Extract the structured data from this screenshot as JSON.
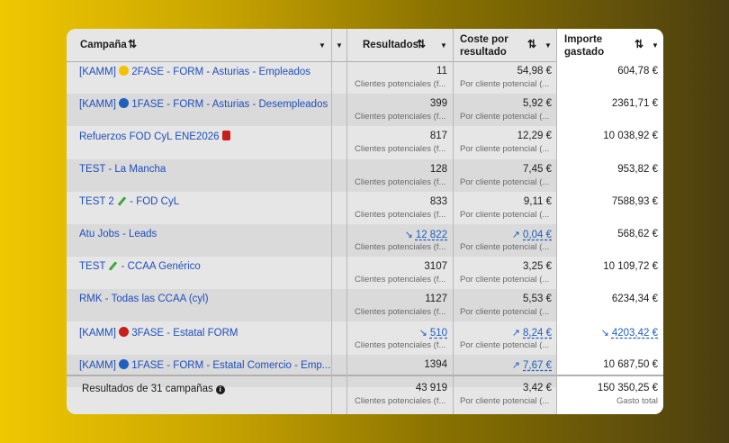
{
  "header": {
    "campaign_label": "Campaña",
    "results_label": "Resultados",
    "cost_label_line1": "Coste por",
    "cost_label_line2": "resultado",
    "spend_label_line1": "Importe",
    "spend_label_line2": "gastado",
    "sort_glyph": "⇅",
    "caret_glyph": "▼"
  },
  "rows": [
    {
      "campaign": "[KAMM] ",
      "emoji_color": "#f2c200",
      "campaign_tail": " 2FASE - FORM - Asturias - Empleados",
      "results": "11",
      "results_sub": "Clientes potenciales (f...",
      "cost": "54,98 €",
      "cost_sub": "Por cliente potencial (...",
      "spend": "604,78 €"
    },
    {
      "campaign": "[KAMM] ",
      "emoji_color": "#1f5fbf",
      "campaign_tail": " 1FASE - FORM - Asturias - Desempleados",
      "results": "399",
      "results_sub": "Clientes potenciales (f...",
      "cost": "5,92 €",
      "cost_sub": "Por cliente potencial (...",
      "spend": "2361,71 €"
    },
    {
      "campaign": "Refuerzos FOD CyL ENE2026 ",
      "emoji_color": "",
      "campaign_tail": "",
      "results": "817",
      "results_sub": "Clientes potenciales (f...",
      "cost": "12,29 €",
      "cost_sub": "Por cliente potencial (...",
      "spend": "10 038,92 €"
    },
    {
      "campaign": "TEST - La Mancha",
      "emoji_color": "",
      "campaign_tail": "",
      "results": "128",
      "results_sub": "Clientes potenciales (f...",
      "cost": "7,45 €",
      "cost_sub": "Por cliente potencial (...",
      "spend": "953,82 €"
    },
    {
      "campaign": "TEST 2 ",
      "emoji_color": "",
      "campaign_tail": " - FOD CyL",
      "results": "833",
      "results_sub": "Clientes potenciales (f...",
      "cost": "9,11 €",
      "cost_sub": "Por cliente potencial (...",
      "spend": "7588,93 €"
    },
    {
      "campaign": "Atu Jobs - Leads",
      "emoji_color": "",
      "campaign_tail": "",
      "results": "12 822",
      "results_sub": "Clientes potenciales (f...",
      "cost": "0,04 €",
      "cost_sub": "Por cliente potencial (...",
      "spend": "568,62 €"
    },
    {
      "campaign": "TEST ",
      "emoji_color": "",
      "campaign_tail": " - CCAA Genérico",
      "results": "3107",
      "results_sub": "Clientes potenciales (f...",
      "cost": "3,25 €",
      "cost_sub": "Por cliente potencial (...",
      "spend": "10 109,72 €"
    },
    {
      "campaign": "RMK - Todas las CCAA (cyl)",
      "emoji_color": "",
      "campaign_tail": "",
      "results": "1127",
      "results_sub": "Clientes potenciales (f...",
      "cost": "5,53 €",
      "cost_sub": "Por cliente potencial (...",
      "spend": "6234,34 €"
    },
    {
      "campaign": "[KAMM] ",
      "emoji_color": "#c81e1e",
      "campaign_tail": " 3FASE - Estatal FORM",
      "results": "510",
      "results_sub": "Clientes potenciales (f...",
      "cost": "8,24 €",
      "cost_sub": "Por cliente potencial (...",
      "spend": "4203,42 €"
    },
    {
      "campaign": "[KAMM] ",
      "emoji_color": "#1f5fbf",
      "campaign_tail": " 1FASE - FORM - Estatal Comercio - Emp...",
      "results": "1394",
      "results_sub": "",
      "cost": "7,67 €",
      "cost_sub": "",
      "spend": "10 687,50 €"
    }
  ],
  "footer": {
    "label": "Resultados de 31 campañas",
    "info_glyph": "i",
    "results": "43 919",
    "results_sub": "Clientes potenciales (f...",
    "cost": "3,42 €",
    "cost_sub": "Por cliente potencial (...",
    "spend": "150 350,25 €",
    "spend_sub": "Gasto total"
  },
  "icons": {
    "trend_down": "↘",
    "trend_up": "↗"
  },
  "colors": {
    "link": "#1f4fbf",
    "trend": "#1f5fbf"
  }
}
